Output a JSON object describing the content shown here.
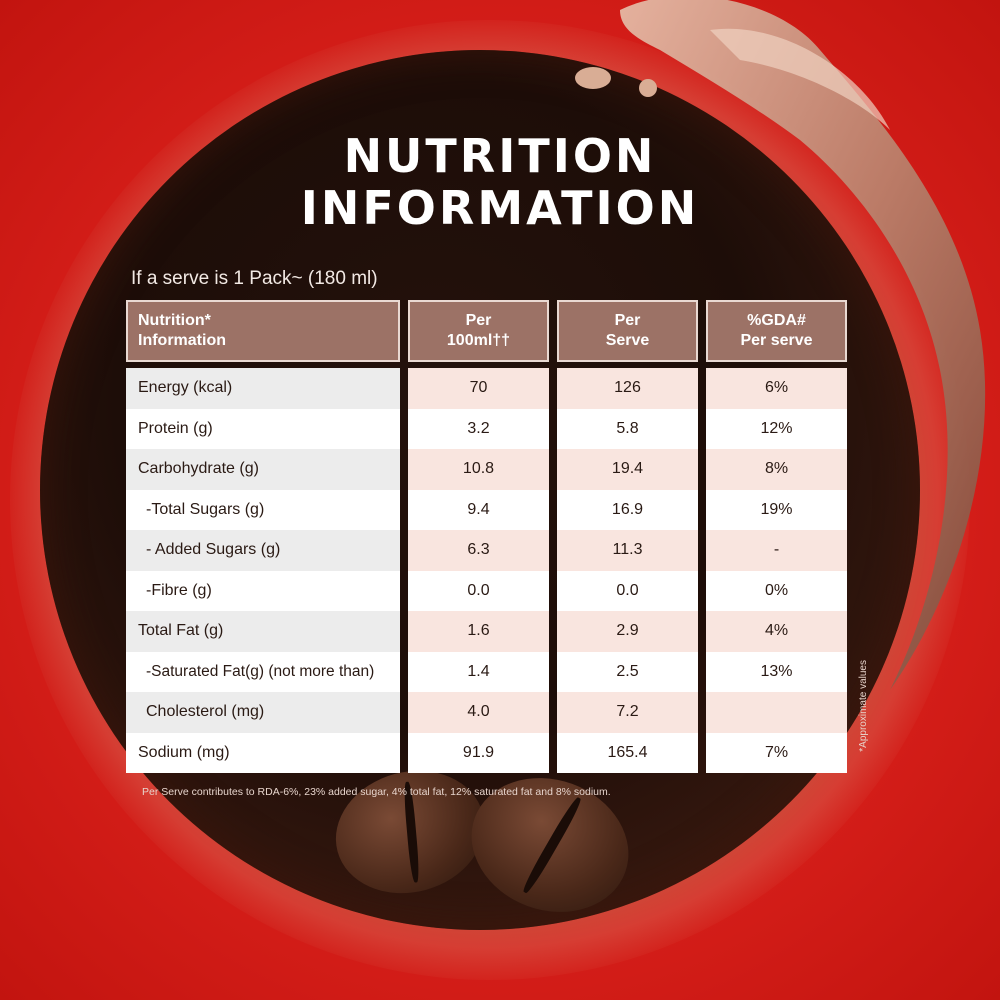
{
  "title_line1": "NUTRITION",
  "title_line2": "INFORMATION",
  "serve_note": "If a serve is 1 Pack~ (180 ml)",
  "headers": [
    {
      "line1": "Nutrition*",
      "line2": "Information"
    },
    {
      "line1": "Per",
      "line2": "100ml††"
    },
    {
      "line1": "Per",
      "line2": "Serve"
    },
    {
      "line1": "%GDA#",
      "line2": "Per serve"
    }
  ],
  "rows": [
    {
      "label": "Energy (kcal)",
      "per100": "70",
      "perServe": "126",
      "gda": "6%"
    },
    {
      "label": "Protein (g)",
      "per100": "3.2",
      "perServe": "5.8",
      "gda": "12%"
    },
    {
      "label": "Carbohydrate (g)",
      "per100": "10.8",
      "perServe": "19.4",
      "gda": "8%"
    },
    {
      "label": "  -Total Sugars (g)",
      "per100": "9.4",
      "perServe": "16.9",
      "gda": "19%"
    },
    {
      "label": "  - Added Sugars (g)",
      "per100": "6.3",
      "perServe": "11.3",
      "gda": "-"
    },
    {
      "label": "  -Fibre (g)",
      "per100": "0.0",
      "perServe": "0.0",
      "gda": "0%"
    },
    {
      "label": "Total Fat (g)",
      "per100": "1.6",
      "perServe": "2.9",
      "gda": "4%"
    },
    {
      "label": "  -Saturated Fat(g) (not more than)",
      "per100": "1.4",
      "perServe": "2.5",
      "gda": "13%"
    },
    {
      "label": "  Cholesterol (mg)",
      "per100": "4.0",
      "perServe": "7.2",
      "gda": ""
    },
    {
      "label": "Sodium (mg)",
      "per100": "91.9",
      "perServe": "165.4",
      "gda": "7%"
    }
  ],
  "footnote": "Per Serve contributes to RDA-6%, 23% added sugar, 4% total fat, 12% saturated fat and 8% sodium.",
  "side_note": "*Approximate values",
  "colors": {
    "header": "#9c7266",
    "background": "#d9201b",
    "disc": "#1d0d08"
  }
}
